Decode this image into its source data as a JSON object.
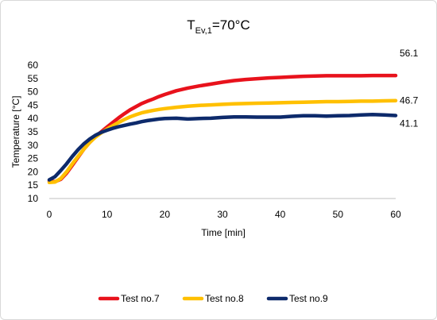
{
  "chart_data": {
    "type": "line",
    "title": "TEv,1=70°C",
    "title_main": "T",
    "title_sub": "Ev,1",
    "title_rest": "=70°C",
    "xlabel": "Time [min]",
    "ylabel": "Temperature [°C]",
    "xlim": [
      0,
      60
    ],
    "ylim": [
      10,
      60
    ],
    "xticks": [
      0,
      10,
      20,
      30,
      40,
      50,
      60
    ],
    "yticks": [
      10,
      15,
      20,
      25,
      30,
      35,
      40,
      45,
      50,
      55,
      60
    ],
    "grid": false,
    "legend_position": "bottom",
    "series": [
      {
        "name": "Test no.7",
        "color": "#e8121c",
        "end_label": "56.1",
        "x": [
          0,
          1,
          2,
          3,
          4,
          5,
          6,
          7,
          8,
          9,
          10,
          11,
          12,
          13,
          14,
          15,
          16,
          17,
          18,
          19,
          20,
          22,
          24,
          26,
          28,
          30,
          32,
          34,
          36,
          38,
          40,
          42,
          44,
          46,
          48,
          50,
          52,
          54,
          56,
          58,
          60
        ],
        "values": [
          16.5,
          16.3,
          17.2,
          19.5,
          22.5,
          25.5,
          28.5,
          31.0,
          33.2,
          35.0,
          36.8,
          38.5,
          40.2,
          41.8,
          43.2,
          44.4,
          45.6,
          46.5,
          47.3,
          48.2,
          49.0,
          50.4,
          51.4,
          52.2,
          52.9,
          53.6,
          54.2,
          54.6,
          54.9,
          55.2,
          55.4,
          55.6,
          55.8,
          55.9,
          56.0,
          56.0,
          56.0,
          56.0,
          56.1,
          56.1,
          56.1
        ]
      },
      {
        "name": "Test no.8",
        "color": "#ffc000",
        "end_label": "46.7",
        "x": [
          0,
          1,
          2,
          3,
          4,
          5,
          6,
          7,
          8,
          9,
          10,
          11,
          12,
          13,
          14,
          15,
          16,
          17,
          18,
          19,
          20,
          22,
          24,
          26,
          28,
          30,
          32,
          34,
          36,
          38,
          40,
          42,
          44,
          46,
          48,
          50,
          52,
          54,
          56,
          58,
          60
        ],
        "values": [
          16.0,
          16.2,
          17.5,
          20.0,
          23.0,
          25.8,
          28.5,
          31.0,
          33.0,
          34.6,
          36.0,
          37.3,
          38.5,
          39.6,
          40.6,
          41.4,
          42.1,
          42.6,
          43.0,
          43.4,
          43.7,
          44.2,
          44.6,
          44.9,
          45.1,
          45.3,
          45.5,
          45.6,
          45.7,
          45.8,
          45.9,
          46.0,
          46.1,
          46.2,
          46.3,
          46.3,
          46.4,
          46.5,
          46.5,
          46.6,
          46.7
        ]
      },
      {
        "name": "Test no.9",
        "color": "#0d2a6b",
        "end_label": "41.1",
        "x": [
          0,
          1,
          2,
          3,
          4,
          5,
          6,
          7,
          8,
          9,
          10,
          11,
          12,
          13,
          14,
          15,
          16,
          17,
          18,
          19,
          20,
          22,
          24,
          26,
          28,
          30,
          32,
          34,
          36,
          38,
          40,
          42,
          44,
          46,
          48,
          50,
          52,
          54,
          56,
          58,
          60
        ],
        "values": [
          17.0,
          18.2,
          20.5,
          23.0,
          25.8,
          28.3,
          30.5,
          32.3,
          33.7,
          34.8,
          35.6,
          36.3,
          36.9,
          37.4,
          37.9,
          38.3,
          38.8,
          39.2,
          39.5,
          39.8,
          40.0,
          40.1,
          39.8,
          40.0,
          40.1,
          40.4,
          40.6,
          40.6,
          40.5,
          40.5,
          40.5,
          40.8,
          41.0,
          41.0,
          40.9,
          41.0,
          41.1,
          41.3,
          41.5,
          41.3,
          41.1
        ]
      }
    ]
  }
}
